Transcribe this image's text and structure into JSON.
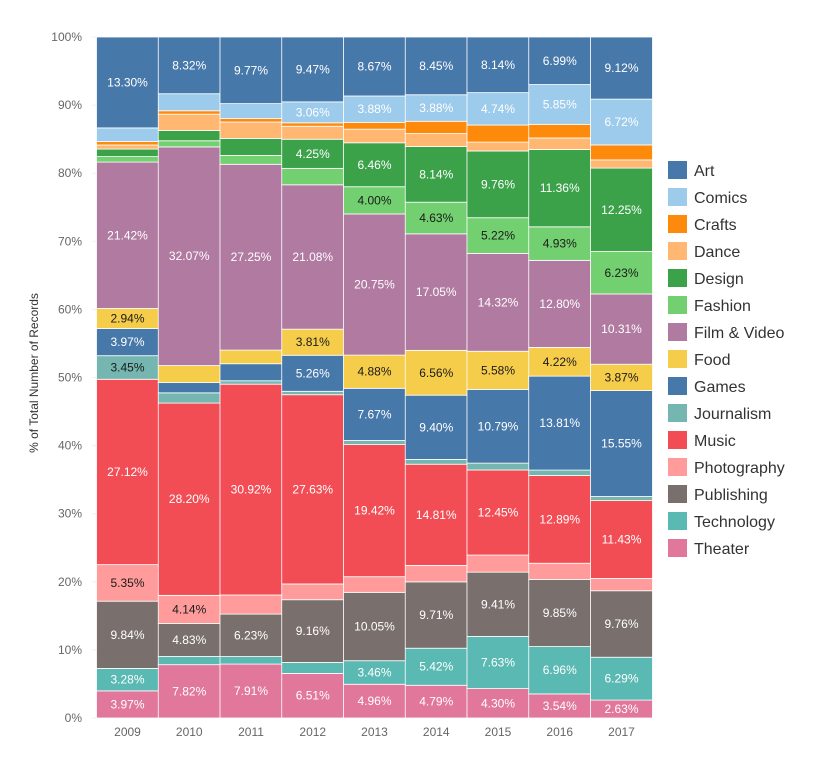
{
  "chart_data": {
    "type": "bar",
    "stacked": true,
    "normalized": true,
    "ylabel": "% of Total Number of Records",
    "ylim": [
      0,
      100
    ],
    "yticks": [
      "0%",
      "10%",
      "20%",
      "30%",
      "40%",
      "50%",
      "60%",
      "70%",
      "80%",
      "90%",
      "100%"
    ],
    "grid": true,
    "legend_position": "right",
    "categories": [
      "2009",
      "2010",
      "2011",
      "2012",
      "2013",
      "2014",
      "2015",
      "2016",
      "2017"
    ],
    "series": [
      {
        "name": "Theater",
        "color": "#e1779b",
        "values": [
          3.97,
          7.82,
          7.91,
          6.51,
          4.96,
          4.79,
          4.3,
          3.54,
          2.63
        ]
      },
      {
        "name": "Technology",
        "color": "#5ab9b2",
        "values": [
          3.28,
          1.2,
          1.1,
          1.6,
          3.46,
          5.42,
          7.63,
          6.96,
          6.29
        ]
      },
      {
        "name": "Publishing",
        "color": "#79706d",
        "values": [
          9.84,
          4.83,
          6.23,
          9.16,
          10.05,
          9.71,
          9.41,
          9.85,
          9.76
        ]
      },
      {
        "name": "Photography",
        "color": "#ff9c9b",
        "values": [
          5.35,
          4.14,
          2.8,
          2.3,
          2.3,
          2.4,
          2.5,
          2.4,
          1.8
        ]
      },
      {
        "name": "Music",
        "color": "#f24d55",
        "values": [
          27.12,
          28.2,
          30.92,
          27.63,
          19.42,
          14.81,
          12.45,
          12.89,
          11.43
        ]
      },
      {
        "name": "Journalism",
        "color": "#75b7b0",
        "values": [
          3.45,
          1.5,
          0.5,
          0.5,
          0.6,
          0.7,
          1.0,
          0.8,
          0.6
        ]
      },
      {
        "name": "Games",
        "color": "#4778aa",
        "values": [
          3.97,
          1.5,
          2.5,
          5.26,
          7.67,
          9.4,
          10.79,
          13.81,
          15.55
        ]
      },
      {
        "name": "Food",
        "color": "#f6cd4b",
        "values": [
          2.94,
          2.5,
          2.0,
          3.81,
          4.88,
          6.56,
          5.58,
          4.22,
          3.87
        ]
      },
      {
        "name": "Film & Video",
        "color": "#b07aa1",
        "values": [
          21.42,
          32.07,
          27.25,
          21.08,
          20.75,
          17.05,
          14.32,
          12.8,
          10.31
        ]
      },
      {
        "name": "Fashion",
        "color": "#72d070",
        "values": [
          0.8,
          0.9,
          1.3,
          2.4,
          4.0,
          4.63,
          5.22,
          4.93,
          6.23
        ]
      },
      {
        "name": "Design",
        "color": "#3ba24a",
        "values": [
          1.1,
          1.5,
          2.5,
          4.25,
          6.46,
          8.14,
          9.76,
          11.36,
          12.25
        ]
      },
      {
        "name": "Dance",
        "color": "#ffb772",
        "values": [
          0.6,
          2.4,
          2.4,
          1.9,
          2.0,
          1.9,
          1.3,
          1.7,
          1.2
        ]
      },
      {
        "name": "Crafts",
        "color": "#fe8a0b",
        "values": [
          0.5,
          0.5,
          0.5,
          0.5,
          1.0,
          1.8,
          2.5,
          2.0,
          2.2
        ]
      },
      {
        "name": "Comics",
        "color": "#9dcbeb",
        "values": [
          2.0,
          2.5,
          2.2,
          3.06,
          3.88,
          3.88,
          4.74,
          5.85,
          6.72
        ]
      },
      {
        "name": "Art",
        "color": "#4778aa",
        "values": [
          13.3,
          8.32,
          9.77,
          9.47,
          8.67,
          8.45,
          8.14,
          6.99,
          9.12
        ]
      }
    ],
    "data_labels": [
      {
        "series": "Art",
        "cat": 0,
        "text": "13.30%"
      },
      {
        "series": "Film & Video",
        "cat": 0,
        "text": "21.42%"
      },
      {
        "series": "Food",
        "cat": 0,
        "text": "2.94%"
      },
      {
        "series": "Games",
        "cat": 0,
        "text": "3.97%"
      },
      {
        "series": "Journalism",
        "cat": 0,
        "text": "3.45%"
      },
      {
        "series": "Music",
        "cat": 0,
        "text": "27.12%"
      },
      {
        "series": "Photography",
        "cat": 0,
        "text": "5.35%"
      },
      {
        "series": "Publishing",
        "cat": 0,
        "text": "9.84%"
      },
      {
        "series": "Technology",
        "cat": 0,
        "text": "3.28%"
      },
      {
        "series": "Theater",
        "cat": 0,
        "text": "3.97%"
      },
      {
        "series": "Art",
        "cat": 1,
        "text": "8.32%"
      },
      {
        "series": "Film & Video",
        "cat": 1,
        "text": "32.07%"
      },
      {
        "series": "Music",
        "cat": 1,
        "text": "28.20%"
      },
      {
        "series": "Photography",
        "cat": 1,
        "text": "4.14%"
      },
      {
        "series": "Publishing",
        "cat": 1,
        "text": "4.83%"
      },
      {
        "series": "Theater",
        "cat": 1,
        "text": "7.82%"
      },
      {
        "series": "Art",
        "cat": 2,
        "text": "9.77%"
      },
      {
        "series": "Film & Video",
        "cat": 2,
        "text": "27.25%"
      },
      {
        "series": "Music",
        "cat": 2,
        "text": "30.92%"
      },
      {
        "series": "Publishing",
        "cat": 2,
        "text": "6.23%"
      },
      {
        "series": "Theater",
        "cat": 2,
        "text": "7.91%"
      },
      {
        "series": "Art",
        "cat": 3,
        "text": "9.47%"
      },
      {
        "series": "Comics",
        "cat": 3,
        "text": "3.06%"
      },
      {
        "series": "Design",
        "cat": 3,
        "text": "4.25%"
      },
      {
        "series": "Film & Video",
        "cat": 3,
        "text": "21.08%"
      },
      {
        "series": "Food",
        "cat": 3,
        "text": "3.81%"
      },
      {
        "series": "Games",
        "cat": 3,
        "text": "5.26%"
      },
      {
        "series": "Music",
        "cat": 3,
        "text": "27.63%"
      },
      {
        "series": "Publishing",
        "cat": 3,
        "text": "9.16%"
      },
      {
        "series": "Theater",
        "cat": 3,
        "text": "6.51%"
      },
      {
        "series": "Art",
        "cat": 4,
        "text": "8.67%"
      },
      {
        "series": "Comics",
        "cat": 4,
        "text": "3.88%"
      },
      {
        "series": "Design",
        "cat": 4,
        "text": "6.46%"
      },
      {
        "series": "Fashion",
        "cat": 4,
        "text": "4.00%"
      },
      {
        "series": "Film & Video",
        "cat": 4,
        "text": "20.75%"
      },
      {
        "series": "Food",
        "cat": 4,
        "text": "4.88%"
      },
      {
        "series": "Games",
        "cat": 4,
        "text": "7.67%"
      },
      {
        "series": "Music",
        "cat": 4,
        "text": "19.42%"
      },
      {
        "series": "Publishing",
        "cat": 4,
        "text": "10.05%"
      },
      {
        "series": "Technology",
        "cat": 4,
        "text": "3.46%"
      },
      {
        "series": "Theater",
        "cat": 4,
        "text": "4.96%"
      },
      {
        "series": "Art",
        "cat": 5,
        "text": "8.45%"
      },
      {
        "series": "Comics",
        "cat": 5,
        "text": "3.88%"
      },
      {
        "series": "Design",
        "cat": 5,
        "text": "8.14%"
      },
      {
        "series": "Fashion",
        "cat": 5,
        "text": "4.63%"
      },
      {
        "series": "Film & Video",
        "cat": 5,
        "text": "17.05%"
      },
      {
        "series": "Food",
        "cat": 5,
        "text": "6.56%"
      },
      {
        "series": "Games",
        "cat": 5,
        "text": "9.40%"
      },
      {
        "series": "Music",
        "cat": 5,
        "text": "14.81%"
      },
      {
        "series": "Publishing",
        "cat": 5,
        "text": "9.71%"
      },
      {
        "series": "Technology",
        "cat": 5,
        "text": "5.42%"
      },
      {
        "series": "Theater",
        "cat": 5,
        "text": "4.79%"
      },
      {
        "series": "Art",
        "cat": 6,
        "text": "8.14%"
      },
      {
        "series": "Comics",
        "cat": 6,
        "text": "4.74%"
      },
      {
        "series": "Design",
        "cat": 6,
        "text": "9.76%"
      },
      {
        "series": "Fashion",
        "cat": 6,
        "text": "5.22%"
      },
      {
        "series": "Film & Video",
        "cat": 6,
        "text": "14.32%"
      },
      {
        "series": "Food",
        "cat": 6,
        "text": "5.58%"
      },
      {
        "series": "Games",
        "cat": 6,
        "text": "10.79%"
      },
      {
        "series": "Music",
        "cat": 6,
        "text": "12.45%"
      },
      {
        "series": "Publishing",
        "cat": 6,
        "text": "9.41%"
      },
      {
        "series": "Technology",
        "cat": 6,
        "text": "7.63%"
      },
      {
        "series": "Theater",
        "cat": 6,
        "text": "4.30%"
      },
      {
        "series": "Art",
        "cat": 7,
        "text": "6.99%"
      },
      {
        "series": "Comics",
        "cat": 7,
        "text": "5.85%"
      },
      {
        "series": "Design",
        "cat": 7,
        "text": "11.36%"
      },
      {
        "series": "Fashion",
        "cat": 7,
        "text": "4.93%"
      },
      {
        "series": "Film & Video",
        "cat": 7,
        "text": "12.80%"
      },
      {
        "series": "Food",
        "cat": 7,
        "text": "4.22%"
      },
      {
        "series": "Games",
        "cat": 7,
        "text": "13.81%"
      },
      {
        "series": "Music",
        "cat": 7,
        "text": "12.89%"
      },
      {
        "series": "Publishing",
        "cat": 7,
        "text": "9.85%"
      },
      {
        "series": "Technology",
        "cat": 7,
        "text": "6.96%"
      },
      {
        "series": "Theater",
        "cat": 7,
        "text": "3.54%"
      },
      {
        "series": "Art",
        "cat": 8,
        "text": "9.12%"
      },
      {
        "series": "Comics",
        "cat": 8,
        "text": "6.72%"
      },
      {
        "series": "Design",
        "cat": 8,
        "text": "12.25%"
      },
      {
        "series": "Fashion",
        "cat": 8,
        "text": "6.23%"
      },
      {
        "series": "Film & Video",
        "cat": 8,
        "text": "10.31%"
      },
      {
        "series": "Food",
        "cat": 8,
        "text": "3.87%"
      },
      {
        "series": "Games",
        "cat": 8,
        "text": "15.55%"
      },
      {
        "series": "Music",
        "cat": 8,
        "text": "11.43%"
      },
      {
        "series": "Publishing",
        "cat": 8,
        "text": "9.76%"
      },
      {
        "series": "Technology",
        "cat": 8,
        "text": "6.29%"
      },
      {
        "series": "Theater",
        "cat": 8,
        "text": "2.63%"
      }
    ],
    "dark_label_series": [
      "Food",
      "Fashion",
      "Journalism",
      "Photography"
    ],
    "legend": [
      "Art",
      "Comics",
      "Crafts",
      "Dance",
      "Design",
      "Fashion",
      "Film & Video",
      "Food",
      "Games",
      "Journalism",
      "Music",
      "Photography",
      "Publishing",
      "Technology",
      "Theater"
    ],
    "legend_colors": {
      "Art": "#4778aa",
      "Comics": "#9dcbeb",
      "Crafts": "#fe8a0b",
      "Dance": "#ffb772",
      "Design": "#3ba24a",
      "Fashion": "#72d070",
      "Film & Video": "#b07aa1",
      "Food": "#f6cd4b",
      "Games": "#4778aa",
      "Journalism": "#75b7b0",
      "Music": "#f24d55",
      "Photography": "#ff9c9b",
      "Publishing": "#79706d",
      "Technology": "#5ab9b2",
      "Theater": "#e1779b"
    }
  }
}
